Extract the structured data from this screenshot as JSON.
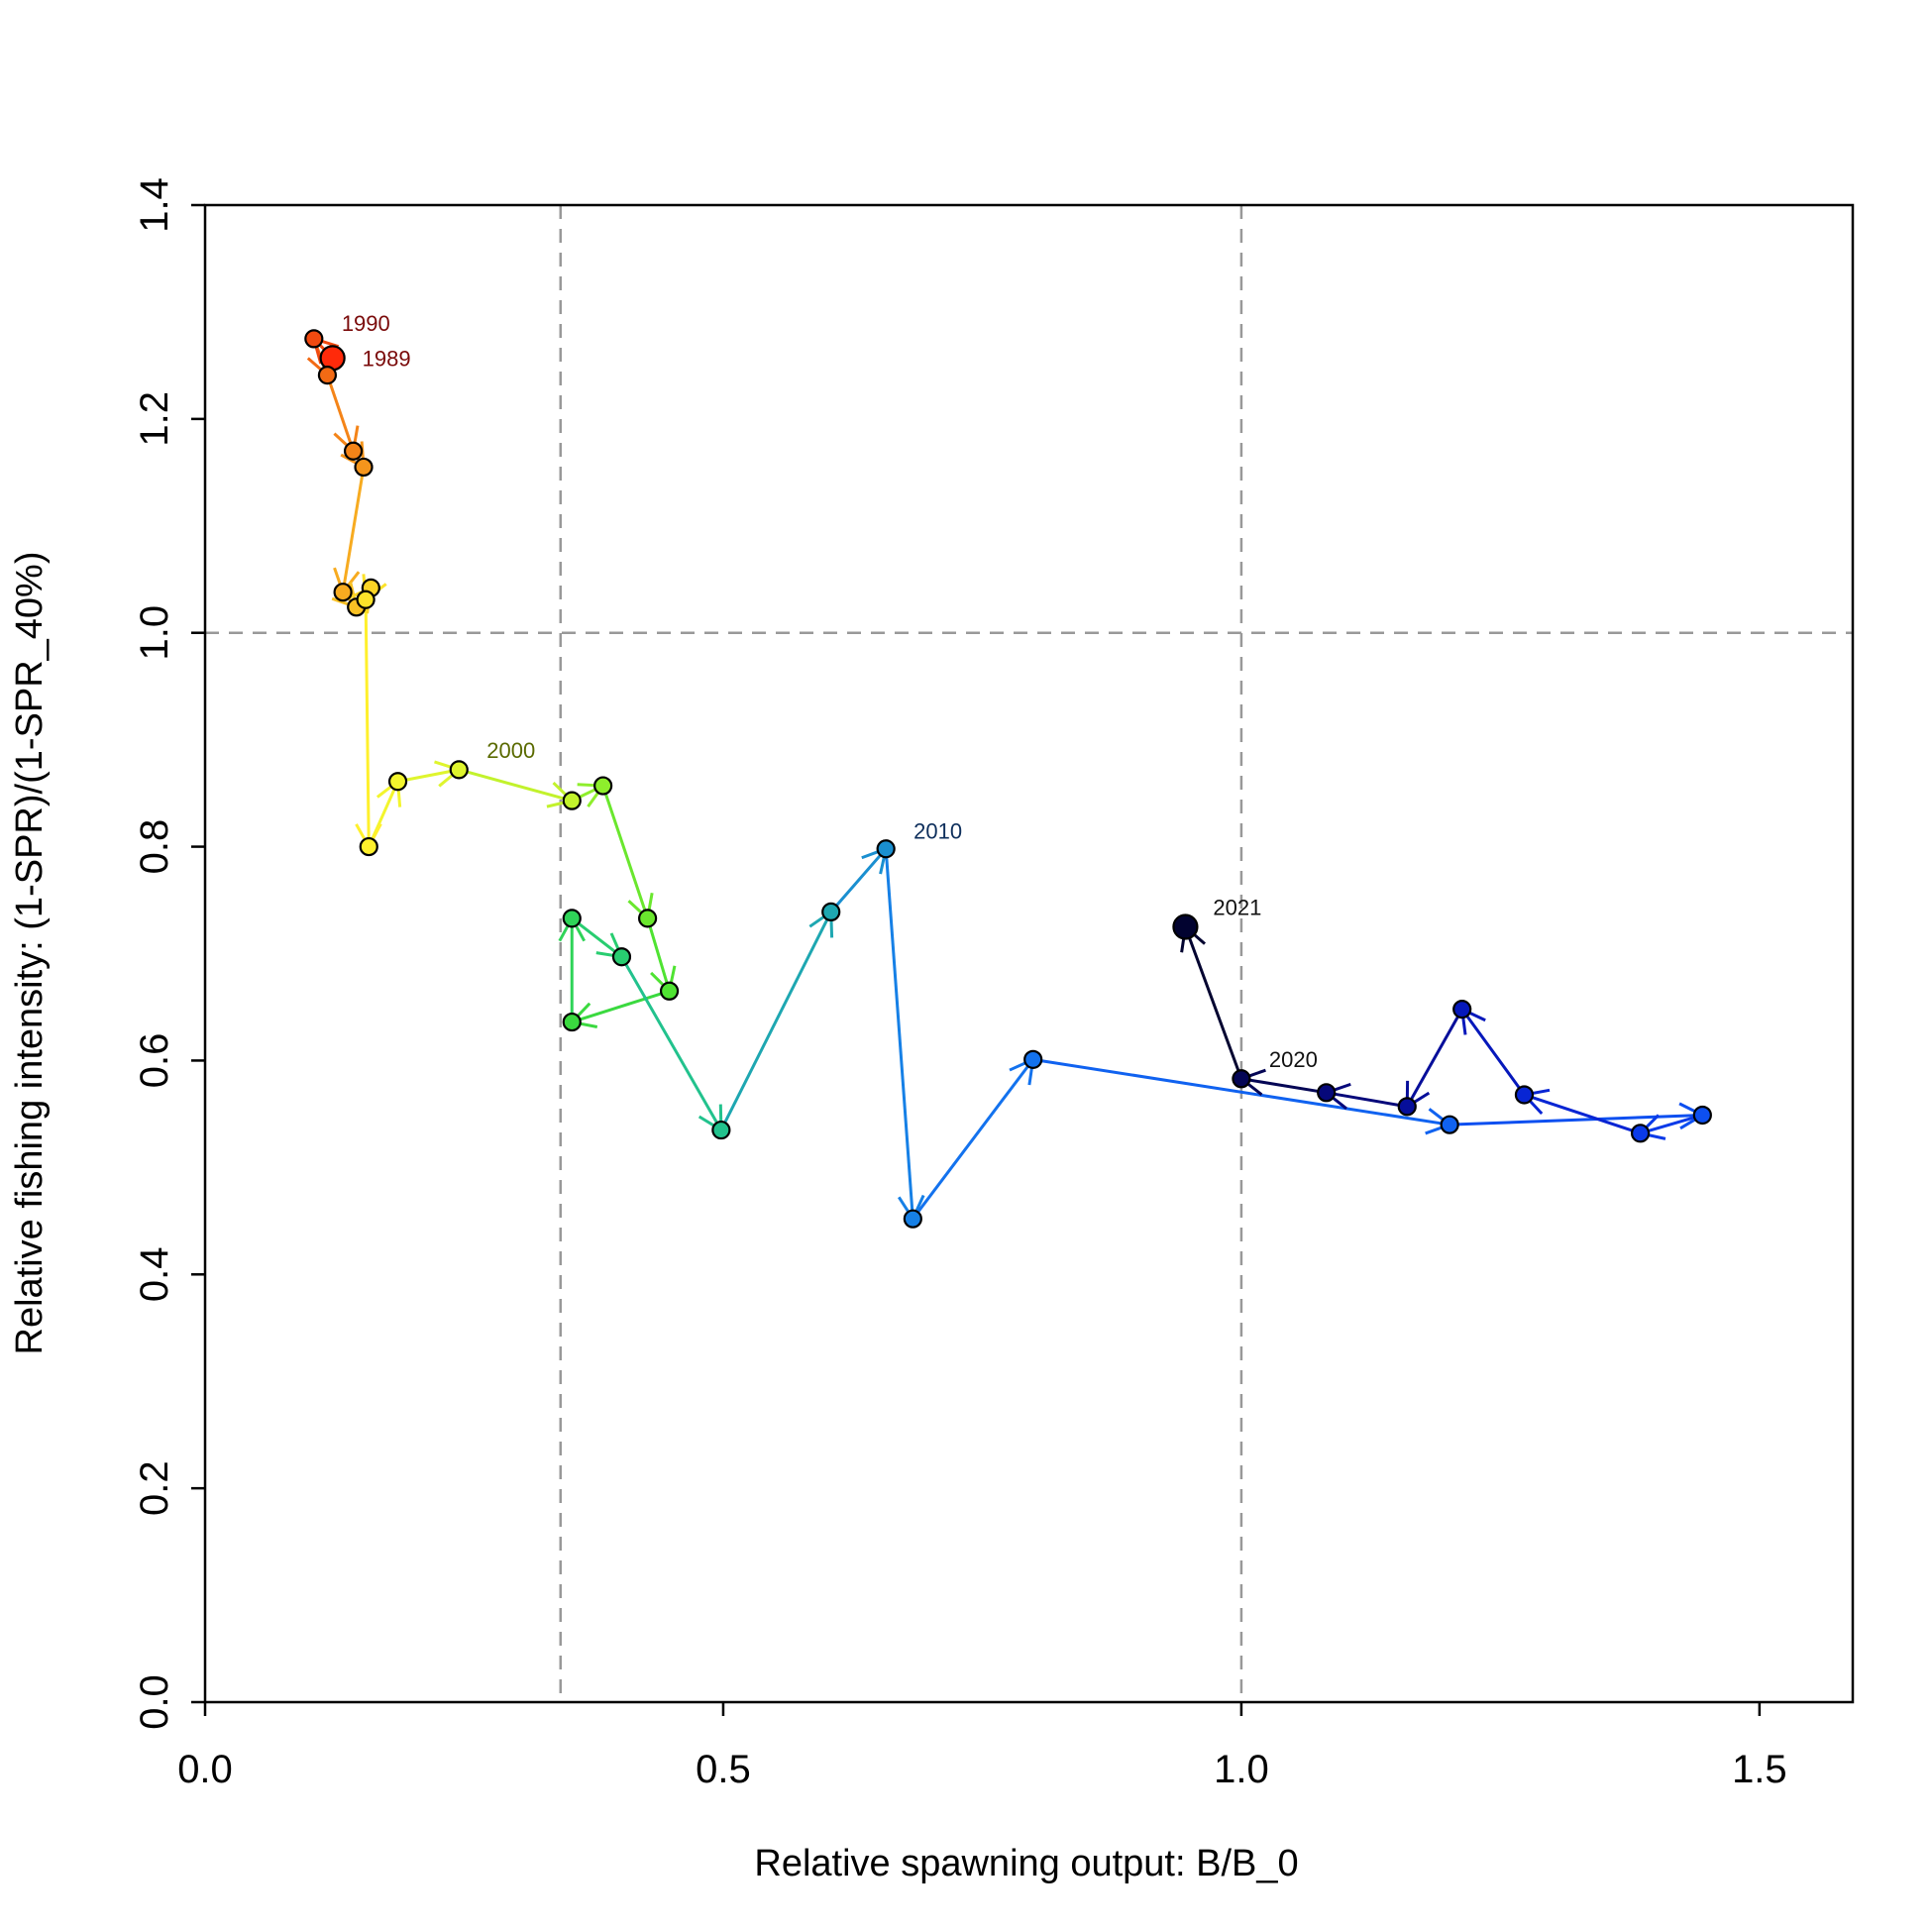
{
  "chart_data": {
    "type": "scatter",
    "title": "",
    "xlabel": "Relative spawning output: B/B_0",
    "ylabel": "Relative fishing intensity: (1-SPR)/(1-SPR_40%)",
    "xlim": [
      0,
      1.59
    ],
    "ylim": [
      0,
      1.4
    ],
    "xticks": [
      0.0,
      0.5,
      1.0,
      1.5
    ],
    "xtick_labels": [
      "0.0",
      "0.5",
      "1.0",
      "1.5"
    ],
    "yticks": [
      0.0,
      0.2,
      0.4,
      0.6,
      0.8,
      1.0,
      1.2,
      1.4
    ],
    "ytick_labels": [
      "0.0",
      "0.2",
      "0.4",
      "0.6",
      "0.8",
      "1.0",
      "1.2",
      "1.4"
    ],
    "grid": false,
    "reference_lines": {
      "vertical": [
        0.343,
        1.0
      ],
      "horizontal": [
        1.0
      ],
      "style": "dashed",
      "color": "#999999"
    },
    "trajectory": "connected points in year order with arrows, colored by year from red (1989) through yellow, green, blue to black (2021)",
    "points": [
      {
        "year": 1989,
        "x": 0.123,
        "y": 1.257,
        "color": "#ff2a0a"
      },
      {
        "year": 1990,
        "x": 0.105,
        "y": 1.275,
        "color": "#f14a10"
      },
      {
        "year": 1991,
        "x": 0.118,
        "y": 1.241,
        "color": "#f26a14"
      },
      {
        "year": 1992,
        "x": 0.143,
        "y": 1.17,
        "color": "#f48418"
      },
      {
        "year": 1993,
        "x": 0.153,
        "y": 1.155,
        "color": "#f5951c"
      },
      {
        "year": 1994,
        "x": 0.133,
        "y": 1.038,
        "color": "#f7ab20"
      },
      {
        "year": 1995,
        "x": 0.146,
        "y": 1.024,
        "color": "#f9c124"
      },
      {
        "year": 1996,
        "x": 0.16,
        "y": 1.042,
        "color": "#fbd426"
      },
      {
        "year": 1997,
        "x": 0.155,
        "y": 1.031,
        "color": "#fce229"
      },
      {
        "year": 1998,
        "x": 0.158,
        "y": 0.8,
        "color": "#fff02c"
      },
      {
        "year": 1999,
        "x": 0.186,
        "y": 0.861,
        "color": "#f3f52d"
      },
      {
        "year": 2000,
        "x": 0.245,
        "y": 0.872,
        "color": "#dff52d"
      },
      {
        "year": 2001,
        "x": 0.354,
        "y": 0.843,
        "color": "#c2f22c"
      },
      {
        "year": 2002,
        "x": 0.384,
        "y": 0.857,
        "color": "#8eee2c"
      },
      {
        "year": 2003,
        "x": 0.427,
        "y": 0.733,
        "color": "#6ae72e"
      },
      {
        "year": 2004,
        "x": 0.448,
        "y": 0.665,
        "color": "#4fe332"
      },
      {
        "year": 2005,
        "x": 0.354,
        "y": 0.636,
        "color": "#3ad93f"
      },
      {
        "year": 2006,
        "x": 0.354,
        "y": 0.733,
        "color": "#2fd458"
      },
      {
        "year": 2007,
        "x": 0.402,
        "y": 0.697,
        "color": "#28cd70"
      },
      {
        "year": 2008,
        "x": 0.498,
        "y": 0.535,
        "color": "#22c28d"
      },
      {
        "year": 2009,
        "x": 0.604,
        "y": 0.739,
        "color": "#1ea7b1"
      },
      {
        "year": 2010,
        "x": 0.657,
        "y": 0.798,
        "color": "#1a8fd0"
      },
      {
        "year": 2011,
        "x": 0.683,
        "y": 0.452,
        "color": "#1680e6"
      },
      {
        "year": 2012,
        "x": 0.799,
        "y": 0.601,
        "color": "#1372ee"
      },
      {
        "year": 2013,
        "x": 1.201,
        "y": 0.54,
        "color": "#1062f0"
      },
      {
        "year": 2014,
        "x": 1.445,
        "y": 0.549,
        "color": "#0d4ff0"
      },
      {
        "year": 2015,
        "x": 1.385,
        "y": 0.532,
        "color": "#0a3ae8"
      },
      {
        "year": 2016,
        "x": 1.273,
        "y": 0.568,
        "color": "#0825d4"
      },
      {
        "year": 2017,
        "x": 1.213,
        "y": 0.648,
        "color": "#0618bb"
      },
      {
        "year": 2018,
        "x": 1.16,
        "y": 0.557,
        "color": "#060e9a"
      },
      {
        "year": 2019,
        "x": 1.082,
        "y": 0.57,
        "color": "#06087a"
      },
      {
        "year": 2020,
        "x": 1.0,
        "y": 0.583,
        "color": "#050655"
      },
      {
        "year": 2021,
        "x": 0.946,
        "y": 0.725,
        "color": "#020330"
      }
    ],
    "labeled_years": [
      {
        "year": 1990,
        "text": "1990",
        "color": "#7a0a0a"
      },
      {
        "year": 1989,
        "text": "1989",
        "color": "#7a0a0a"
      },
      {
        "year": 2000,
        "text": "2000",
        "color": "#5a6a00"
      },
      {
        "year": 2010,
        "text": "2010",
        "color": "#0e2f5c"
      },
      {
        "year": 2020,
        "text": "2020",
        "color": "#111111"
      },
      {
        "year": 2021,
        "text": "2021",
        "color": "#111111"
      }
    ],
    "highlighted_years": [
      1989,
      2021
    ]
  }
}
